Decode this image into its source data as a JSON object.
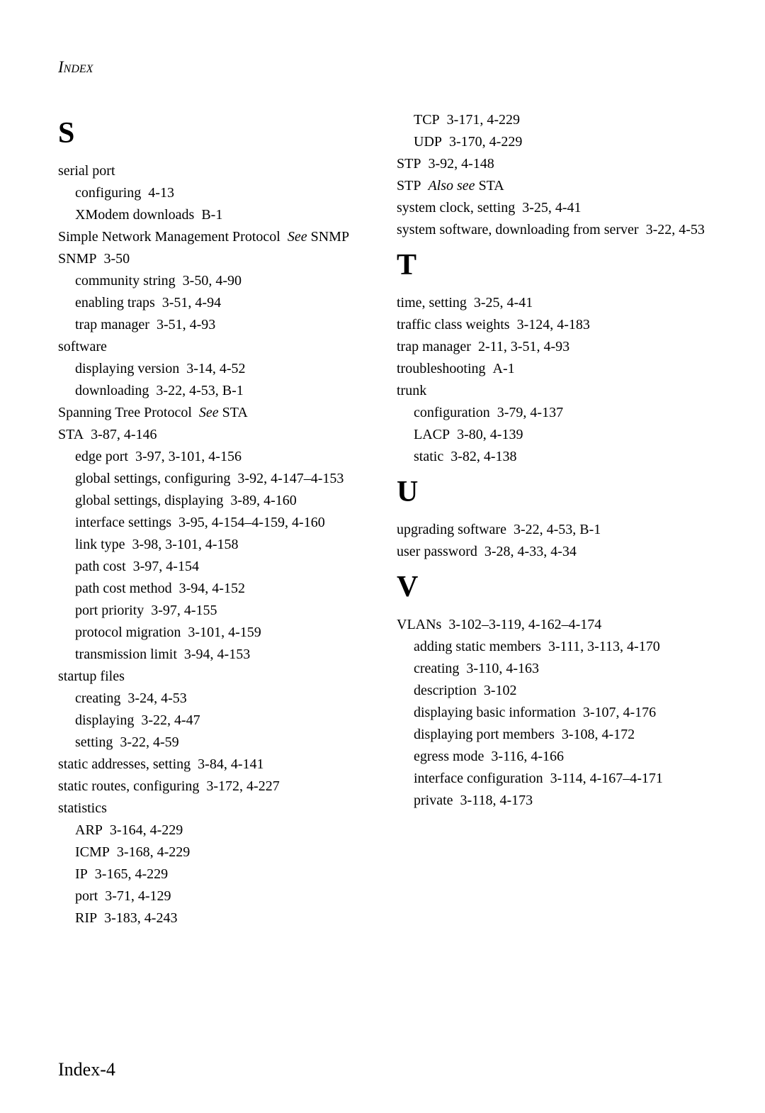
{
  "running_head": "Index",
  "page_footer": "Index-4",
  "text_color": "#000000",
  "background_color": "#ffffff",
  "font_family": "Garamond, 'Times New Roman', serif",
  "font_size_body_pt": 15,
  "font_size_letter_pt": 32,
  "col1": {
    "letter": "S",
    "lines": [
      {
        "cls": "entry",
        "text": "serial port"
      },
      {
        "cls": "sub1",
        "text": "configuring  4-13"
      },
      {
        "cls": "sub1",
        "text": "XModem downloads  B-1"
      },
      {
        "cls": "entry",
        "html": "Simple Network Management Protocol  <span class=\"see\">See</span> SNMP"
      },
      {
        "cls": "entry",
        "text": "SNMP  3-50"
      },
      {
        "cls": "sub1",
        "text": "community string  3-50, 4-90"
      },
      {
        "cls": "sub1",
        "text": "enabling traps  3-51, 4-94"
      },
      {
        "cls": "sub1",
        "text": "trap manager  3-51, 4-93"
      },
      {
        "cls": "entry",
        "text": "software"
      },
      {
        "cls": "sub1",
        "text": "displaying version  3-14, 4-52"
      },
      {
        "cls": "sub1",
        "text": "downloading  3-22, 4-53, B-1"
      },
      {
        "cls": "entry",
        "html": "Spanning Tree Protocol  <span class=\"see\">See</span> STA"
      },
      {
        "cls": "entry",
        "text": "STA  3-87, 4-146"
      },
      {
        "cls": "sub1",
        "text": "edge port  3-97, 3-101, 4-156"
      },
      {
        "cls": "sub1",
        "text": "global settings, configuring  3-92, 4-147–4-153"
      },
      {
        "cls": "sub1",
        "text": "global settings, displaying  3-89, 4-160"
      },
      {
        "cls": "sub1",
        "text": "interface settings  3-95, 4-154–4-159, 4-160"
      },
      {
        "cls": "sub1",
        "text": "link type  3-98, 3-101, 4-158"
      },
      {
        "cls": "sub1",
        "text": "path cost  3-97, 4-154"
      },
      {
        "cls": "sub1",
        "text": "path cost method  3-94, 4-152"
      },
      {
        "cls": "sub1",
        "text": "port priority  3-97, 4-155"
      },
      {
        "cls": "sub1",
        "text": "protocol migration  3-101, 4-159"
      },
      {
        "cls": "sub1",
        "text": "transmission limit  3-94, 4-153"
      },
      {
        "cls": "entry",
        "text": "startup files"
      },
      {
        "cls": "sub1",
        "text": "creating  3-24, 4-53"
      },
      {
        "cls": "sub1",
        "text": "displaying  3-22, 4-47"
      },
      {
        "cls": "sub1",
        "text": "setting  3-22, 4-59"
      },
      {
        "cls": "entry",
        "text": "static addresses, setting  3-84, 4-141"
      },
      {
        "cls": "entry",
        "text": "static routes, configuring  3-172, 4-227"
      },
      {
        "cls": "entry",
        "text": "statistics"
      },
      {
        "cls": "sub1",
        "text": "ARP  3-164, 4-229"
      },
      {
        "cls": "sub1",
        "text": "ICMP  3-168, 4-229"
      },
      {
        "cls": "sub1",
        "text": "IP  3-165, 4-229"
      },
      {
        "cls": "sub1",
        "text": "port  3-71, 4-129"
      },
      {
        "cls": "sub1",
        "text": "RIP  3-183, 4-243"
      }
    ]
  },
  "col2": {
    "sections": [
      {
        "pre_lines": [
          {
            "cls": "sub1",
            "text": "TCP  3-171, 4-229"
          },
          {
            "cls": "sub1",
            "text": "UDP  3-170, 4-229"
          },
          {
            "cls": "entry",
            "text": "STP  3-92, 4-148"
          },
          {
            "cls": "entry",
            "html": "STP  <span class=\"see\">Also see</span> STA"
          },
          {
            "cls": "entry",
            "text": "system clock, setting  3-25, 4-41"
          },
          {
            "cls": "entry",
            "text": "system software, downloading from server  3-22, 4-53"
          }
        ]
      },
      {
        "letter": "T",
        "lines": [
          {
            "cls": "entry",
            "text": "time, setting  3-25, 4-41"
          },
          {
            "cls": "entry",
            "text": "traffic class weights  3-124, 4-183"
          },
          {
            "cls": "entry",
            "text": "trap manager  2-11, 3-51, 4-93"
          },
          {
            "cls": "entry",
            "text": "troubleshooting  A-1"
          },
          {
            "cls": "entry",
            "text": "trunk"
          },
          {
            "cls": "sub1",
            "text": "configuration  3-79, 4-137"
          },
          {
            "cls": "sub1",
            "text": "LACP  3-80, 4-139"
          },
          {
            "cls": "sub1",
            "text": "static  3-82, 4-138"
          }
        ]
      },
      {
        "letter": "U",
        "lines": [
          {
            "cls": "entry",
            "text": "upgrading software  3-22, 4-53, B-1"
          },
          {
            "cls": "entry",
            "text": "user password  3-28, 4-33, 4-34"
          }
        ]
      },
      {
        "letter": "V",
        "lines": [
          {
            "cls": "entry",
            "text": "VLANs  3-102–3-119, 4-162–4-174"
          },
          {
            "cls": "sub1",
            "text": "adding static members  3-111, 3-113, 4-170"
          },
          {
            "cls": "sub1",
            "text": "creating  3-110, 4-163"
          },
          {
            "cls": "sub1",
            "text": "description  3-102"
          },
          {
            "cls": "sub1",
            "text": "displaying basic information  3-107, 4-176"
          },
          {
            "cls": "sub1",
            "text": "displaying port members  3-108, 4-172"
          },
          {
            "cls": "sub1",
            "text": "egress mode  3-116, 4-166"
          },
          {
            "cls": "sub1",
            "text": "interface configuration  3-114, 4-167–4-171"
          },
          {
            "cls": "sub1",
            "text": "private  3-118, 4-173"
          }
        ]
      }
    ]
  }
}
